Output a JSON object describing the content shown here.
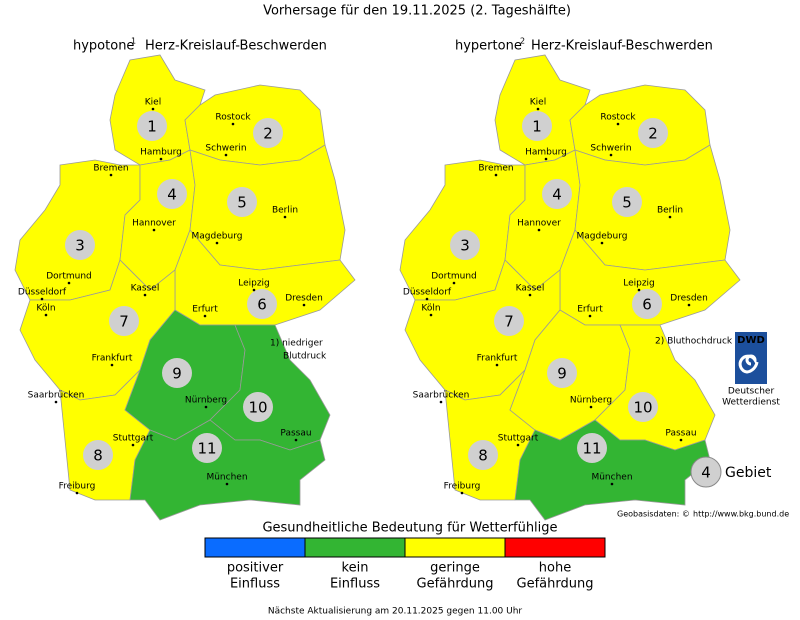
{
  "header": {
    "title": "Vorhersage für den 19.11.2025 (2. Tageshälfte)"
  },
  "maps": [
    {
      "title": "hypotone",
      "footnote_mark": "1",
      "subtitle": "Herz-Kreislauf-Beschwerden",
      "note": [
        "1) niedriger",
        "Blutdruck"
      ],
      "regions": [
        {
          "label": "1",
          "color": "#ffff00"
        },
        {
          "label": "2",
          "color": "#ffff00"
        },
        {
          "label": "3",
          "color": "#ffff00"
        },
        {
          "label": "4",
          "color": "#ffff00"
        },
        {
          "label": "5",
          "color": "#ffff00"
        },
        {
          "label": "6",
          "color": "#ffff00"
        },
        {
          "label": "7",
          "color": "#ffff00"
        },
        {
          "label": "8",
          "color": "#ffff00"
        },
        {
          "label": "9",
          "color": "#33b533"
        },
        {
          "label": "10",
          "color": "#33b533"
        },
        {
          "label": "11",
          "color": "#33b533"
        }
      ],
      "cities": [
        "Kiel",
        "Rostock",
        "Hamburg",
        "Schwerin",
        "Bremen",
        "Hannover",
        "Berlin",
        "Magdeburg",
        "Dortmund",
        "Düsseldorf",
        "Köln",
        "Kassel",
        "Leipzig",
        "Dresden",
        "Erfurt",
        "Frankfurt",
        "Saarbrücken",
        "Nürnberg",
        "Stuttgart",
        "Passau",
        "München",
        "Freiburg"
      ]
    },
    {
      "title": "hypertone",
      "footnote_mark": "2",
      "subtitle": "Herz-Kreislauf-Beschwerden",
      "note": [
        "2) Bluthochdruck"
      ],
      "regions": [
        {
          "label": "1",
          "color": "#ffff00"
        },
        {
          "label": "2",
          "color": "#ffff00"
        },
        {
          "label": "3",
          "color": "#ffff00"
        },
        {
          "label": "4",
          "color": "#ffff00"
        },
        {
          "label": "5",
          "color": "#ffff00"
        },
        {
          "label": "6",
          "color": "#ffff00"
        },
        {
          "label": "7",
          "color": "#ffff00"
        },
        {
          "label": "8",
          "color": "#ffff00"
        },
        {
          "label": "9",
          "color": "#ffff00"
        },
        {
          "label": "10",
          "color": "#ffff00"
        },
        {
          "label": "11",
          "color": "#33b533"
        }
      ],
      "cities": [
        "Kiel",
        "Rostock",
        "Hamburg",
        "Schwerin",
        "Bremen",
        "Hannover",
        "Berlin",
        "Magdeburg",
        "Dortmund",
        "Düsseldorf",
        "Köln",
        "Kassel",
        "Leipzig",
        "Dresden",
        "Erfurt",
        "Frankfurt",
        "Saarbrücken",
        "Nürnberg",
        "Stuttgart",
        "Passau",
        "München",
        "Freiburg"
      ]
    }
  ],
  "logo": {
    "abbr": "DWD",
    "lines": [
      "Deutscher",
      "Wetterdienst"
    ]
  },
  "key": {
    "label": "4",
    "text": "Gebiet"
  },
  "credit": {
    "text": "Geobasisdaten: ©",
    "link": "http://www.bkg.bund.de"
  },
  "legend": {
    "title": "Gesundheitliche Bedeutung für Wetterfühlige",
    "items": [
      {
        "color": "#0a6cff",
        "lines": [
          "positiver",
          "Einfluss"
        ]
      },
      {
        "color": "#33b533",
        "lines": [
          "kein",
          "Einfluss"
        ]
      },
      {
        "color": "#ffff00",
        "lines": [
          "geringe",
          "Gefährdung"
        ]
      },
      {
        "color": "#ff0000",
        "lines": [
          "hohe",
          "Gefährdung"
        ]
      }
    ]
  },
  "footer": "Nächste Aktualisierung am 20.11.2025 gegen 11.00 Uhr"
}
